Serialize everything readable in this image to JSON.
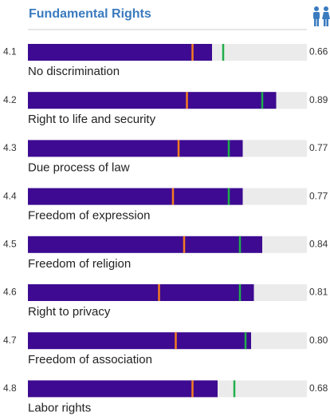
{
  "chart_data": {
    "type": "bar",
    "title": "Fundamental Rights",
    "codes": [
      "4.1",
      "4.2",
      "4.3",
      "4.4",
      "4.5",
      "4.6",
      "4.7",
      "4.8"
    ],
    "categories": [
      "No discrimination",
      "Right to life and security",
      "Due process of law",
      "Freedom of expression",
      "Freedom of religion",
      "Right to privacy",
      "Freedom of association",
      "Labor rights"
    ],
    "values": [
      0.66,
      0.89,
      0.77,
      0.77,
      0.84,
      0.81,
      0.8,
      0.68
    ],
    "value_labels": [
      "0.66",
      "0.89",
      "0.77",
      "0.77",
      "0.84",
      "0.81",
      "0.80",
      "0.68"
    ],
    "color": "#3d0a91",
    "track_color": "#ebebeb",
    "markers": [
      {
        "color": "#f57c20",
        "values": [
          0.59,
          0.57,
          0.54,
          0.52,
          0.56,
          0.47,
          0.53,
          0.59
        ]
      },
      {
        "color": "#1fae4b",
        "values": [
          0.7,
          0.84,
          0.72,
          0.72,
          0.76,
          0.76,
          0.78,
          0.74
        ]
      }
    ],
    "xlim": [
      0,
      1
    ]
  }
}
